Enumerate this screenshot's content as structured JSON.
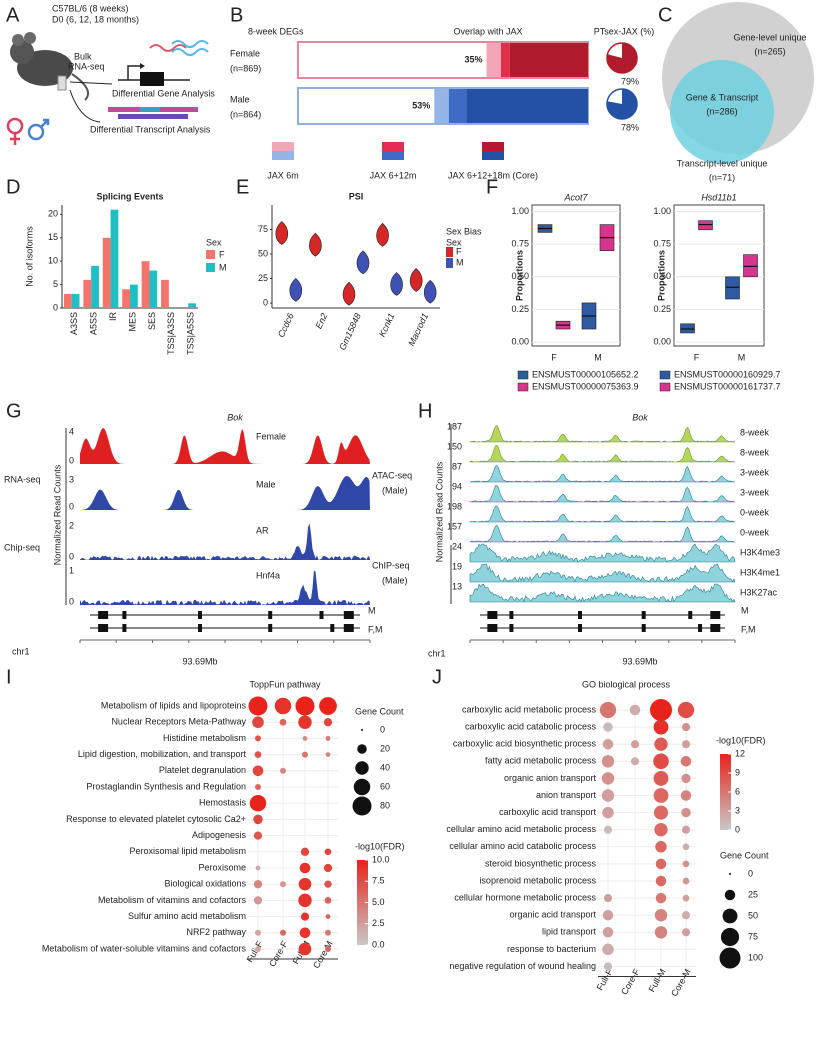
{
  "panel_labels": [
    "A",
    "B",
    "C",
    "D",
    "E",
    "F",
    "G",
    "H",
    "I",
    "J"
  ],
  "panel_a": {
    "strain": "C57BL/6 (8 weeks)",
    "timepoints": "D0 (6, 12, 18 months)",
    "method_1": "Bulk",
    "method_2": "RNA-seq",
    "gene_analysis": "Differential Gene Analysis",
    "transcript_analysis": "Differential Transcript Analysis"
  },
  "panel_c": {
    "gene_unique": "Gene-level unique",
    "gene_unique_n": "(n=265)",
    "both": "Gene & Transcript",
    "both_n": "(n=286)",
    "transcript_unique": "Transcript-level unique",
    "transcript_unique_n": "(n=71)"
  },
  "panel_g": {
    "title": "Bok",
    "ylabel": "Normalized Read Counts",
    "assays": [
      "RNA-seq",
      "Chip-seq"
    ],
    "tracks": [
      {
        "name": "Female",
        "max": 4,
        "min": 0
      },
      {
        "name": "Male",
        "max": 3,
        "min": 0
      },
      {
        "name": "AR",
        "max": 2,
        "min": 0
      },
      {
        "name": "Hnf4a",
        "max": 1,
        "min": 0
      }
    ],
    "isoforms": [
      "M",
      "F,M"
    ],
    "chrom": "chr1",
    "position": "93.69Mb"
  },
  "panel_h": {
    "title": "Bok",
    "ylabel": "Normalized Read Counts",
    "assays": [
      {
        "name": "ATAC-seq",
        "sub": "(Male)"
      },
      {
        "name": "ChIP-seq",
        "sub": "(Male)"
      }
    ],
    "tracks": [
      {
        "name": "8-week",
        "max": 187
      },
      {
        "name": "8-week",
        "max": 150
      },
      {
        "name": "3-week",
        "max": 87
      },
      {
        "name": "3-week",
        "max": 94
      },
      {
        "name": "0-week",
        "max": 198
      },
      {
        "name": "0-week",
        "max": 157
      },
      {
        "name": "H3K4me3",
        "max": 24
      },
      {
        "name": "H3K4me1",
        "max": 19
      },
      {
        "name": "H3K27ac",
        "max": 13
      }
    ],
    "isoforms": [
      "M",
      "F,M"
    ],
    "chrom": "chr1",
    "position": "93.69Mb"
  },
  "chart_data": [
    {
      "type": "stacked-bar",
      "title": "8-week DEGs",
      "overlap_title": "Overlap with JAX",
      "pie_title": "PTsex-JAX (%)",
      "categories": [
        "Female",
        "Male"
      ],
      "n_labels": [
        "(n=869)",
        "(n=864)"
      ],
      "category_colors": [
        "#e8849b",
        "#8fb0e0"
      ],
      "xlim": [
        0,
        100
      ],
      "series": [
        {
          "name": "JAX 6m",
          "colors": [
            "#f4a6b8",
            "#93b4e4"
          ],
          "values": [
            5,
            5
          ]
        },
        {
          "name": "JAX 6+12m",
          "colors": [
            "#e0304c",
            "#3f6bc4"
          ],
          "values": [
            3,
            6
          ]
        },
        {
          "name": "JAX 6+12+18m (Core)",
          "colors": [
            "#b01c2e",
            "#2451a6"
          ],
          "values": [
            27,
            42
          ]
        }
      ],
      "overlap_labels": [
        "35%",
        "53%"
      ],
      "pie_values": [
        79,
        78
      ],
      "pie_labels": [
        "79%",
        "78%"
      ],
      "pie_colors": [
        "#b01c2e",
        "#2451a6"
      ]
    },
    {
      "type": "bar",
      "title": "Splicing Events",
      "ylabel": "No. of isoforms",
      "legend_title": "Sex",
      "categories": [
        "A3SS",
        "A5SS",
        "IR",
        "MES",
        "SES",
        "TSS|A3SS",
        "TSS|A5SS"
      ],
      "series": [
        {
          "name": "F",
          "color": "#f4736b",
          "values": [
            3,
            6,
            15,
            4,
            10,
            6,
            null
          ]
        },
        {
          "name": "M",
          "color": "#1fbfc4",
          "values": [
            3,
            9,
            21,
            5,
            8,
            null,
            1
          ]
        }
      ],
      "ylim": [
        0,
        22
      ],
      "yticks": [
        0,
        5,
        10,
        15,
        20
      ]
    },
    {
      "type": "violin",
      "title": "PSI",
      "legend_title": "Sex Bias",
      "legend_subtitle": "Sex",
      "categories": [
        "Ccdc6",
        "En2",
        "Gm15848",
        "Kcnk1",
        "Macrod1"
      ],
      "series": [
        {
          "name": "F",
          "color": "#d62728",
          "values": [
            70,
            58,
            8,
            68,
            22
          ]
        },
        {
          "name": "M",
          "color": "#3f51b5",
          "values": [
            12,
            null,
            40,
            18,
            10
          ]
        }
      ],
      "ylim": [
        -5,
        100
      ],
      "yticks": [
        0,
        25,
        50,
        75
      ]
    },
    {
      "type": "box",
      "title": "Acot7",
      "ylabel": "Proportions",
      "categories": [
        "F",
        "M"
      ],
      "series": [
        {
          "name": "ENSMUST00000105652.2",
          "color": "#2d5aa0",
          "values": [
            0.87,
            0.2
          ],
          "q1": [
            0.84,
            0.1
          ],
          "q3": [
            0.9,
            0.3
          ]
        },
        {
          "name": "ENSMUST00000075363.9",
          "color": "#d6358e",
          "values": [
            0.13,
            0.8
          ],
          "q1": [
            0.1,
            0.7
          ],
          "q3": [
            0.16,
            0.9
          ]
        }
      ],
      "ylim": [
        -0.03,
        1.05
      ],
      "yticks": [
        {
          "value": 0,
          "label": "0.00"
        },
        {
          "value": 0.25,
          "label": "0.25"
        },
        {
          "value": 0.5,
          "label": "0.50"
        },
        {
          "value": 0.75,
          "label": "0.75"
        },
        {
          "value": 1,
          "label": "1.00"
        }
      ]
    },
    {
      "type": "box",
      "title": "Hsd11b1",
      "ylabel": "Proportions",
      "categories": [
        "F",
        "M"
      ],
      "series": [
        {
          "name": "ENSMUST00000160929.7",
          "color": "#2d5aa0",
          "values": [
            0.1,
            0.42
          ],
          "q1": [
            0.07,
            0.33
          ],
          "q3": [
            0.14,
            0.5
          ]
        },
        {
          "name": "ENSMUST00000161737.7",
          "color": "#d6358e",
          "values": [
            0.9,
            0.58
          ],
          "q1": [
            0.86,
            0.5
          ],
          "q3": [
            0.93,
            0.67
          ]
        }
      ],
      "ylim": [
        -0.03,
        1.05
      ],
      "yticks": [
        {
          "value": 0,
          "label": "0.00"
        },
        {
          "value": 0.25,
          "label": "0.25"
        },
        {
          "value": 0.5,
          "label": "0.50"
        },
        {
          "value": 0.75,
          "label": "0.75"
        },
        {
          "value": 1,
          "label": "1.00"
        }
      ]
    },
    {
      "type": "dot",
      "title": "ToppFun pathway",
      "size_title": "Gene Count",
      "color_title": "-log10(FDR)",
      "categories": [
        "Full-F",
        "Core-F",
        "Full-M",
        "Core-M"
      ],
      "rows": [
        "Metabolism of lipids and lipoproteins",
        "Nuclear Receptors Meta-Pathway",
        "Histidine metabolism",
        "Lipid digestion, mobilization, and transport",
        "Platelet degranulation",
        "Prostaglandin Synthesis and Regulation",
        "Hemostasis",
        "Response to elevated platelet cytosolic Ca2+",
        "Adipogenesis",
        "Peroxisomal lipid metabolism",
        "Peroxisome",
        "Biological oxidations",
        "Metabolism of vitamins and cofactors",
        "Sulfur amino acid metabolism",
        "NRF2 pathway",
        "Metabolism of water-soluble vitamins and cofactors"
      ],
      "count": [
        [
          80,
          60,
          80,
          70
        ],
        [
          30,
          10,
          40,
          15
        ],
        [
          8,
          null,
          5,
          5
        ],
        [
          10,
          null,
          8,
          5
        ],
        [
          25,
          8,
          null,
          null
        ],
        [
          8,
          null,
          null,
          null
        ],
        [
          60,
          null,
          null,
          null
        ],
        [
          20,
          null,
          null,
          null
        ],
        [
          15,
          null,
          null,
          null
        ],
        [
          null,
          null,
          15,
          10
        ],
        [
          5,
          null,
          25,
          15
        ],
        [
          15,
          8,
          35,
          12
        ],
        [
          15,
          null,
          40,
          10
        ],
        [
          null,
          null,
          15,
          5
        ],
        [
          8,
          8,
          25,
          8
        ],
        [
          8,
          null,
          35,
          8
        ]
      ],
      "fdr": [
        [
          10,
          9,
          10,
          10
        ],
        [
          8,
          6,
          9,
          8
        ],
        [
          7,
          null,
          4,
          5
        ],
        [
          7,
          null,
          5,
          4
        ],
        [
          8,
          4,
          null,
          null
        ],
        [
          6,
          null,
          null,
          null
        ],
        [
          10,
          null,
          null,
          null
        ],
        [
          8,
          null,
          null,
          null
        ],
        [
          7,
          null,
          null,
          null
        ],
        [
          null,
          null,
          8,
          8
        ],
        [
          2,
          null,
          9,
          8
        ],
        [
          4,
          3,
          9,
          7
        ],
        [
          3,
          null,
          9,
          6
        ],
        [
          null,
          null,
          9,
          6
        ],
        [
          2,
          6,
          9,
          5
        ],
        [
          2,
          null,
          9,
          6
        ]
      ],
      "size_ticks": [
        0,
        20,
        40,
        60,
        80
      ],
      "clim": [
        0,
        10
      ],
      "color_ticks": [
        {
          "value": 0,
          "label": "0.0"
        },
        {
          "value": 2.5,
          "label": "2.5"
        },
        {
          "value": 5,
          "label": "5.0"
        },
        {
          "value": 7.5,
          "label": "7.5"
        },
        {
          "value": 10,
          "label": "10.0"
        }
      ]
    },
    {
      "type": "dot",
      "title": "GO biological process",
      "size_title": "Gene Count",
      "color_title": "-log10(FDR)",
      "categories": [
        "Full-F",
        "Core-F",
        "Full-M",
        "Core-M"
      ],
      "rows": [
        "carboxylic acid metabolic process",
        "carboxylic acid catabolic process",
        "carboxylic acid biosynthetic process",
        "fatty acid metabolic process",
        "organic anion transport",
        "anion transport",
        "carboxylic acid transport",
        "cellular amino acid metabolic process",
        "cellular amino acid catabolic process",
        "steroid biosynthetic process",
        "isoprenoid metabolic process",
        "cellular hormone metabolic process",
        "organic acid transport",
        "lipid transport",
        "response to bacterium",
        "negative regulation of wound healing"
      ],
      "count": [
        [
          60,
          25,
          110,
          60
        ],
        [
          20,
          null,
          50,
          15
        ],
        [
          25,
          15,
          40,
          15
        ],
        [
          35,
          15,
          55,
          25
        ],
        [
          35,
          null,
          50,
          20
        ],
        [
          35,
          null,
          50,
          25
        ],
        [
          30,
          null,
          45,
          20
        ],
        [
          15,
          null,
          40,
          15
        ],
        [
          null,
          null,
          30,
          10
        ],
        [
          null,
          null,
          25,
          10
        ],
        [
          null,
          null,
          25,
          10
        ],
        [
          15,
          null,
          25,
          10
        ],
        [
          25,
          null,
          35,
          15
        ],
        [
          25,
          null,
          35,
          15
        ],
        [
          30,
          null,
          null,
          null
        ],
        [
          15,
          null,
          null,
          null
        ]
      ],
      "fdr": [
        [
          6,
          2,
          12,
          9
        ],
        [
          1,
          null,
          11,
          4
        ],
        [
          3,
          3,
          8,
          3
        ],
        [
          4,
          2,
          9,
          6
        ],
        [
          4,
          null,
          8,
          4
        ],
        [
          3,
          null,
          7,
          5
        ],
        [
          3,
          null,
          7,
          4
        ],
        [
          1,
          null,
          7,
          3
        ],
        [
          null,
          null,
          7,
          2
        ],
        [
          null,
          null,
          7,
          4
        ],
        [
          null,
          null,
          7,
          4
        ],
        [
          3,
          null,
          6,
          3
        ],
        [
          3,
          null,
          5,
          2
        ],
        [
          3,
          null,
          5,
          3
        ],
        [
          2,
          null,
          null,
          null
        ],
        [
          1,
          null,
          null,
          null
        ]
      ],
      "size_ticks": [
        0,
        25,
        50,
        75,
        100
      ],
      "clim": [
        0,
        12
      ],
      "color_ticks": [
        0,
        3,
        6,
        9,
        12
      ]
    }
  ]
}
